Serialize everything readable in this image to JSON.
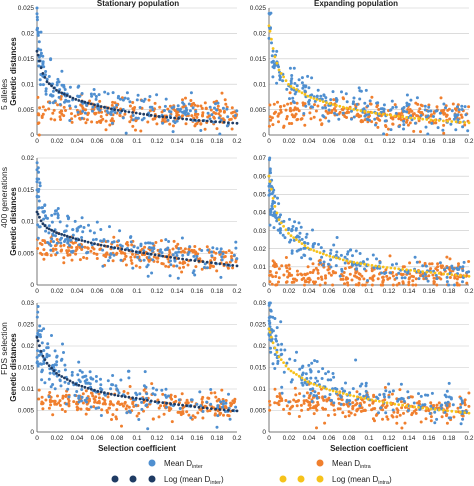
{
  "column_titles": [
    "Stationary population",
    "Expanding population"
  ],
  "row_labels": [
    "5 alleles",
    "400 generations",
    "FDS selection"
  ],
  "ylabel": "Genetic distances",
  "xlabel": "Selection coefficient",
  "legend": {
    "stationary": {
      "mean_label": "Mean D",
      "mean_sub": "inter",
      "log_label": "Log (mean D",
      "log_sub": "inter",
      "log_close": ")"
    },
    "expanding": {
      "mean_label": "Mean D",
      "mean_sub": "intra",
      "log_label": "Log (mean D",
      "log_sub": "intra",
      "log_close": ")"
    }
  },
  "colors": {
    "inter": "#4f8fd0",
    "intra": "#f07f2e",
    "log_inter": "#1f3b63",
    "log_intra": "#f6c21a",
    "grid": "#c8c8c8"
  },
  "chart_data": [
    {
      "type": "scatter",
      "panel": "row1-stationary",
      "xlim": [
        0,
        0.2
      ],
      "ylim": [
        0,
        0.025
      ],
      "xticks": [
        "0",
        "0.02",
        "0.04",
        "0.06",
        "0.08",
        "0.1",
        "0.12",
        "0.14",
        "0.16",
        "0.18",
        "0.2"
      ],
      "yticks": [
        "0",
        "0.005",
        "0.01",
        "0.015",
        "0.02",
        "0.025"
      ],
      "series": [
        {
          "name": "Mean D inter",
          "x": [
            0.0,
            0.002,
            0.005,
            0.01,
            0.02,
            0.04,
            0.06,
            0.08,
            0.1,
            0.12,
            0.14,
            0.16,
            0.18,
            0.2
          ],
          "y": [
            0.0205,
            0.017,
            0.013,
            0.0105,
            0.0085,
            0.0068,
            0.0058,
            0.0052,
            0.0048,
            0.0045,
            0.0043,
            0.0041,
            0.004,
            0.0039
          ]
        },
        {
          "name": "Mean D intra",
          "x": [
            0.0,
            0.02,
            0.05,
            0.1,
            0.15,
            0.2
          ],
          "y": [
            0.0045,
            0.0044,
            0.0044,
            0.0043,
            0.0043,
            0.0043
          ]
        },
        {
          "name": "Log (mean D inter)",
          "x": [
            0.0,
            0.005,
            0.01,
            0.02,
            0.04,
            0.06,
            0.08,
            0.1,
            0.12,
            0.14,
            0.16,
            0.18,
            0.2
          ],
          "y": [
            0.0165,
            0.0125,
            0.0105,
            0.0087,
            0.0069,
            0.0058,
            0.0049,
            0.0043,
            0.0037,
            0.0033,
            0.0029,
            0.0026,
            0.0023
          ]
        }
      ]
    },
    {
      "type": "scatter",
      "panel": "row1-expanding",
      "xlim": [
        0,
        0.2
      ],
      "ylim": [
        0,
        0.025
      ],
      "xticks": [
        "0",
        "0.02",
        "0.04",
        "0.06",
        "0.08",
        "0.1",
        "0.12",
        "0.14",
        "0.16",
        "0.18",
        "0.2"
      ],
      "yticks": [
        "0",
        "0.005",
        "0.01",
        "0.015",
        "0.02",
        "0.025"
      ],
      "series": [
        {
          "name": "Mean D inter",
          "x": [
            0.0,
            0.002,
            0.005,
            0.01,
            0.02,
            0.04,
            0.06,
            0.08,
            0.1,
            0.12,
            0.14,
            0.16,
            0.18,
            0.2
          ],
          "y": [
            0.0225,
            0.019,
            0.0155,
            0.0125,
            0.0098,
            0.0075,
            0.0062,
            0.0054,
            0.0049,
            0.0046,
            0.0043,
            0.0041,
            0.004,
            0.0039
          ]
        },
        {
          "name": "Mean D intra",
          "x": [
            0.0,
            0.02,
            0.05,
            0.1,
            0.15,
            0.2
          ],
          "y": [
            0.0042,
            0.0041,
            0.0041,
            0.004,
            0.004,
            0.004
          ]
        },
        {
          "name": "Log (mean D intra)",
          "x": [
            0.0,
            0.005,
            0.01,
            0.02,
            0.04,
            0.06,
            0.08,
            0.1,
            0.12,
            0.14,
            0.16,
            0.18,
            0.2
          ],
          "y": [
            0.0215,
            0.016,
            0.0128,
            0.0098,
            0.0075,
            0.0062,
            0.0052,
            0.0045,
            0.0039,
            0.0034,
            0.003,
            0.0027,
            0.0024
          ]
        }
      ]
    },
    {
      "type": "scatter",
      "panel": "row2-stationary",
      "xlim": [
        0,
        0.2
      ],
      "ylim": [
        0,
        0.02
      ],
      "xticks": [
        "0",
        "0.02",
        "0.04",
        "0.06",
        "0.08",
        "0.1",
        "0.12",
        "0.14",
        "0.16",
        "0.18",
        "0.2"
      ],
      "yticks": [
        "0",
        "0.005",
        "0.01",
        "0.015",
        "0.02"
      ],
      "series": [
        {
          "name": "Mean D inter",
          "x": [
            0.0,
            0.002,
            0.005,
            0.01,
            0.02,
            0.04,
            0.06,
            0.08,
            0.1,
            0.12,
            0.14,
            0.16,
            0.18,
            0.2
          ],
          "y": [
            0.0165,
            0.0135,
            0.0115,
            0.0098,
            0.0085,
            0.0072,
            0.0064,
            0.0058,
            0.0053,
            0.0049,
            0.0046,
            0.0043,
            0.0041,
            0.004
          ]
        },
        {
          "name": "Mean D intra",
          "x": [
            0.0,
            0.02,
            0.05,
            0.1,
            0.15,
            0.2
          ],
          "y": [
            0.0062,
            0.0058,
            0.0054,
            0.0048,
            0.0042,
            0.0038
          ]
        },
        {
          "name": "Log (mean D inter)",
          "x": [
            0.0,
            0.005,
            0.01,
            0.02,
            0.04,
            0.06,
            0.08,
            0.1,
            0.12,
            0.14,
            0.16,
            0.18,
            0.2
          ],
          "y": [
            0.0115,
            0.0098,
            0.009,
            0.0082,
            0.0072,
            0.0064,
            0.0058,
            0.0052,
            0.0047,
            0.0042,
            0.0038,
            0.0034,
            0.003
          ]
        }
      ]
    },
    {
      "type": "scatter",
      "panel": "row2-expanding",
      "xlim": [
        0,
        0.2
      ],
      "ylim": [
        0,
        0.07
      ],
      "xticks": [
        "0",
        "0.02",
        "0.04",
        "0.06",
        "0.08",
        "0.1",
        "0.12",
        "0.14",
        "0.16",
        "0.18",
        "0.2"
      ],
      "yticks": [
        "0",
        "0.01",
        "0.02",
        "0.03",
        "0.04",
        "0.05",
        "0.06",
        "0.07"
      ],
      "series": [
        {
          "name": "Mean D inter",
          "x": [
            0.0,
            0.002,
            0.005,
            0.01,
            0.02,
            0.03,
            0.04,
            0.06,
            0.08,
            0.1,
            0.12,
            0.14,
            0.16,
            0.18,
            0.2
          ],
          "y": [
            0.062,
            0.05,
            0.04,
            0.033,
            0.027,
            0.024,
            0.021,
            0.016,
            0.013,
            0.0105,
            0.0088,
            0.0075,
            0.0066,
            0.006,
            0.0056
          ]
        },
        {
          "name": "Mean D intra",
          "x": [
            0.0,
            0.02,
            0.05,
            0.1,
            0.15,
            0.2
          ],
          "y": [
            0.0065,
            0.0062,
            0.006,
            0.0057,
            0.0055,
            0.0053
          ]
        },
        {
          "name": "Log (mean D intra)",
          "x": [
            0.0,
            0.005,
            0.01,
            0.02,
            0.04,
            0.06,
            0.08,
            0.1,
            0.12,
            0.14,
            0.16,
            0.18,
            0.2
          ],
          "y": [
            0.06,
            0.045,
            0.036,
            0.028,
            0.02,
            0.016,
            0.013,
            0.011,
            0.0095,
            0.0082,
            0.007,
            0.0058,
            0.0048
          ]
        }
      ]
    },
    {
      "type": "scatter",
      "panel": "row3-stationary",
      "xlim": [
        0,
        0.2
      ],
      "ylim": [
        0,
        0.03
      ],
      "xticks": [
        "0",
        "0.02",
        "0.04",
        "0.06",
        "0.08",
        "0.1",
        "0.12",
        "0.14",
        "0.16",
        "0.18",
        "0.2"
      ],
      "yticks": [
        "0",
        "0.005",
        "0.01",
        "0.015",
        "0.02",
        "0.025",
        "0.03"
      ],
      "series": [
        {
          "name": "Mean D inter",
          "x": [
            0.0,
            0.002,
            0.005,
            0.01,
            0.02,
            0.03,
            0.04,
            0.06,
            0.08,
            0.1,
            0.12,
            0.14,
            0.16,
            0.18,
            0.2
          ],
          "y": [
            0.024,
            0.021,
            0.019,
            0.017,
            0.0145,
            0.013,
            0.0118,
            0.0102,
            0.009,
            0.0082,
            0.0076,
            0.007,
            0.0066,
            0.0063,
            0.006
          ]
        },
        {
          "name": "Mean D intra",
          "x": [
            0.0,
            0.02,
            0.05,
            0.1,
            0.15,
            0.2
          ],
          "y": [
            0.0075,
            0.007,
            0.0066,
            0.0062,
            0.0058,
            0.0055
          ]
        },
        {
          "name": "Log (mean D inter)",
          "x": [
            0.0,
            0.005,
            0.01,
            0.02,
            0.04,
            0.06,
            0.08,
            0.1,
            0.12,
            0.14,
            0.16,
            0.18,
            0.2
          ],
          "y": [
            0.022,
            0.018,
            0.016,
            0.0135,
            0.011,
            0.0095,
            0.0085,
            0.0078,
            0.007,
            0.0064,
            0.0058,
            0.0053,
            0.0049
          ]
        }
      ]
    },
    {
      "type": "scatter",
      "panel": "row3-expanding",
      "xlim": [
        0,
        0.2
      ],
      "ylim": [
        0,
        0.03
      ],
      "xticks": [
        "0",
        "0.02",
        "0.04",
        "0.06",
        "0.08",
        "0.1",
        "0.12",
        "0.14",
        "0.16",
        "0.18",
        "0.2"
      ],
      "yticks": [
        "0",
        "0.005",
        "0.01",
        "0.015",
        "0.02",
        "0.025",
        "0.03"
      ],
      "series": [
        {
          "name": "Mean D inter",
          "x": [
            0.0,
            0.002,
            0.005,
            0.01,
            0.02,
            0.03,
            0.04,
            0.06,
            0.08,
            0.1,
            0.12,
            0.14,
            0.16,
            0.18,
            0.2
          ],
          "y": [
            0.026,
            0.023,
            0.02,
            0.018,
            0.0155,
            0.0135,
            0.012,
            0.0102,
            0.009,
            0.0082,
            0.0075,
            0.007,
            0.0065,
            0.0062,
            0.0059
          ]
        },
        {
          "name": "Mean D intra",
          "x": [
            0.0,
            0.02,
            0.05,
            0.1,
            0.15,
            0.2
          ],
          "y": [
            0.0072,
            0.0068,
            0.0065,
            0.0061,
            0.0058,
            0.0056
          ]
        },
        {
          "name": "Log (mean D intra)",
          "x": [
            0.0,
            0.005,
            0.01,
            0.02,
            0.04,
            0.06,
            0.08,
            0.1,
            0.12,
            0.14,
            0.16,
            0.18,
            0.2
          ],
          "y": [
            0.024,
            0.02,
            0.0175,
            0.0145,
            0.0115,
            0.0098,
            0.0086,
            0.0076,
            0.0067,
            0.006,
            0.0054,
            0.0049,
            0.0044
          ]
        }
      ]
    }
  ]
}
